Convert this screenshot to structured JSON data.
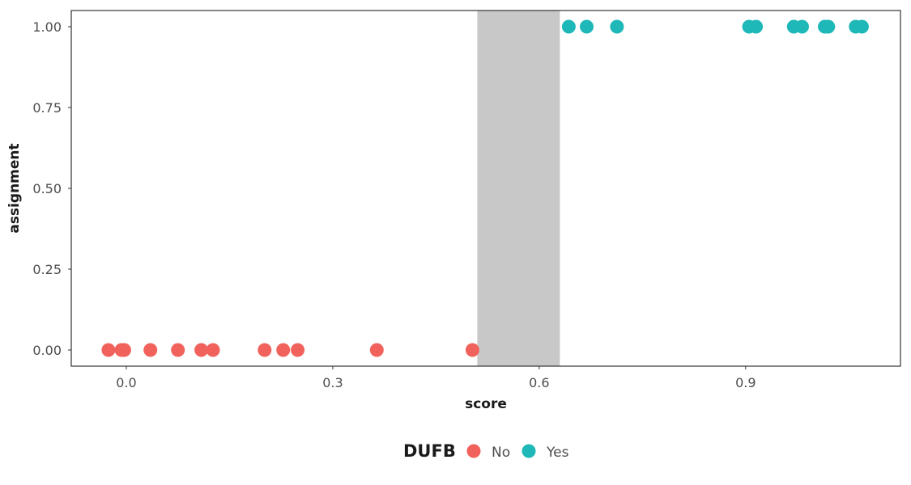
{
  "chart_data": {
    "type": "scatter",
    "xlabel": "score",
    "ylabel": "assignment",
    "xlim": [
      -0.08,
      1.125
    ],
    "ylim": [
      -0.05,
      1.05
    ],
    "x_ticks": [
      0.0,
      0.3,
      0.6,
      0.9
    ],
    "x_tick_labels": [
      "0.0",
      "0.3",
      "0.6",
      "0.9"
    ],
    "y_ticks": [
      0,
      0.25,
      0.5,
      0.75,
      1.0
    ],
    "y_tick_labels": [
      "0.00",
      "0.25",
      "0.50",
      "0.75",
      "1.00"
    ],
    "shaded_region": {
      "x_start": 0.51,
      "x_end": 0.63,
      "color": "#c8c8c8"
    },
    "legend": {
      "title": "DUFB",
      "position": "bottom",
      "entries": [
        {
          "label": "No",
          "color": "#f0625b"
        },
        {
          "label": "Yes",
          "color": "#1fb8b8"
        }
      ]
    },
    "series": [
      {
        "name": "No",
        "color": "#f0625b",
        "points": [
          {
            "x": -0.026,
            "y": 0
          },
          {
            "x": -0.007,
            "y": 0
          },
          {
            "x": -0.003,
            "y": 0
          },
          {
            "x": 0.035,
            "y": 0
          },
          {
            "x": 0.075,
            "y": 0
          },
          {
            "x": 0.109,
            "y": 0
          },
          {
            "x": 0.126,
            "y": 0
          },
          {
            "x": 0.201,
            "y": 0
          },
          {
            "x": 0.228,
            "y": 0
          },
          {
            "x": 0.249,
            "y": 0
          },
          {
            "x": 0.364,
            "y": 0
          },
          {
            "x": 0.503,
            "y": 0
          }
        ]
      },
      {
        "name": "Yes",
        "color": "#1fb8b8",
        "points": [
          {
            "x": 0.643,
            "y": 1
          },
          {
            "x": 0.669,
            "y": 1
          },
          {
            "x": 0.713,
            "y": 1
          },
          {
            "x": 0.905,
            "y": 1
          },
          {
            "x": 0.915,
            "y": 1
          },
          {
            "x": 0.97,
            "y": 1
          },
          {
            "x": 0.982,
            "y": 1
          },
          {
            "x": 1.015,
            "y": 1
          },
          {
            "x": 1.02,
            "y": 1
          },
          {
            "x": 1.06,
            "y": 1
          },
          {
            "x": 1.069,
            "y": 1
          }
        ]
      }
    ]
  }
}
